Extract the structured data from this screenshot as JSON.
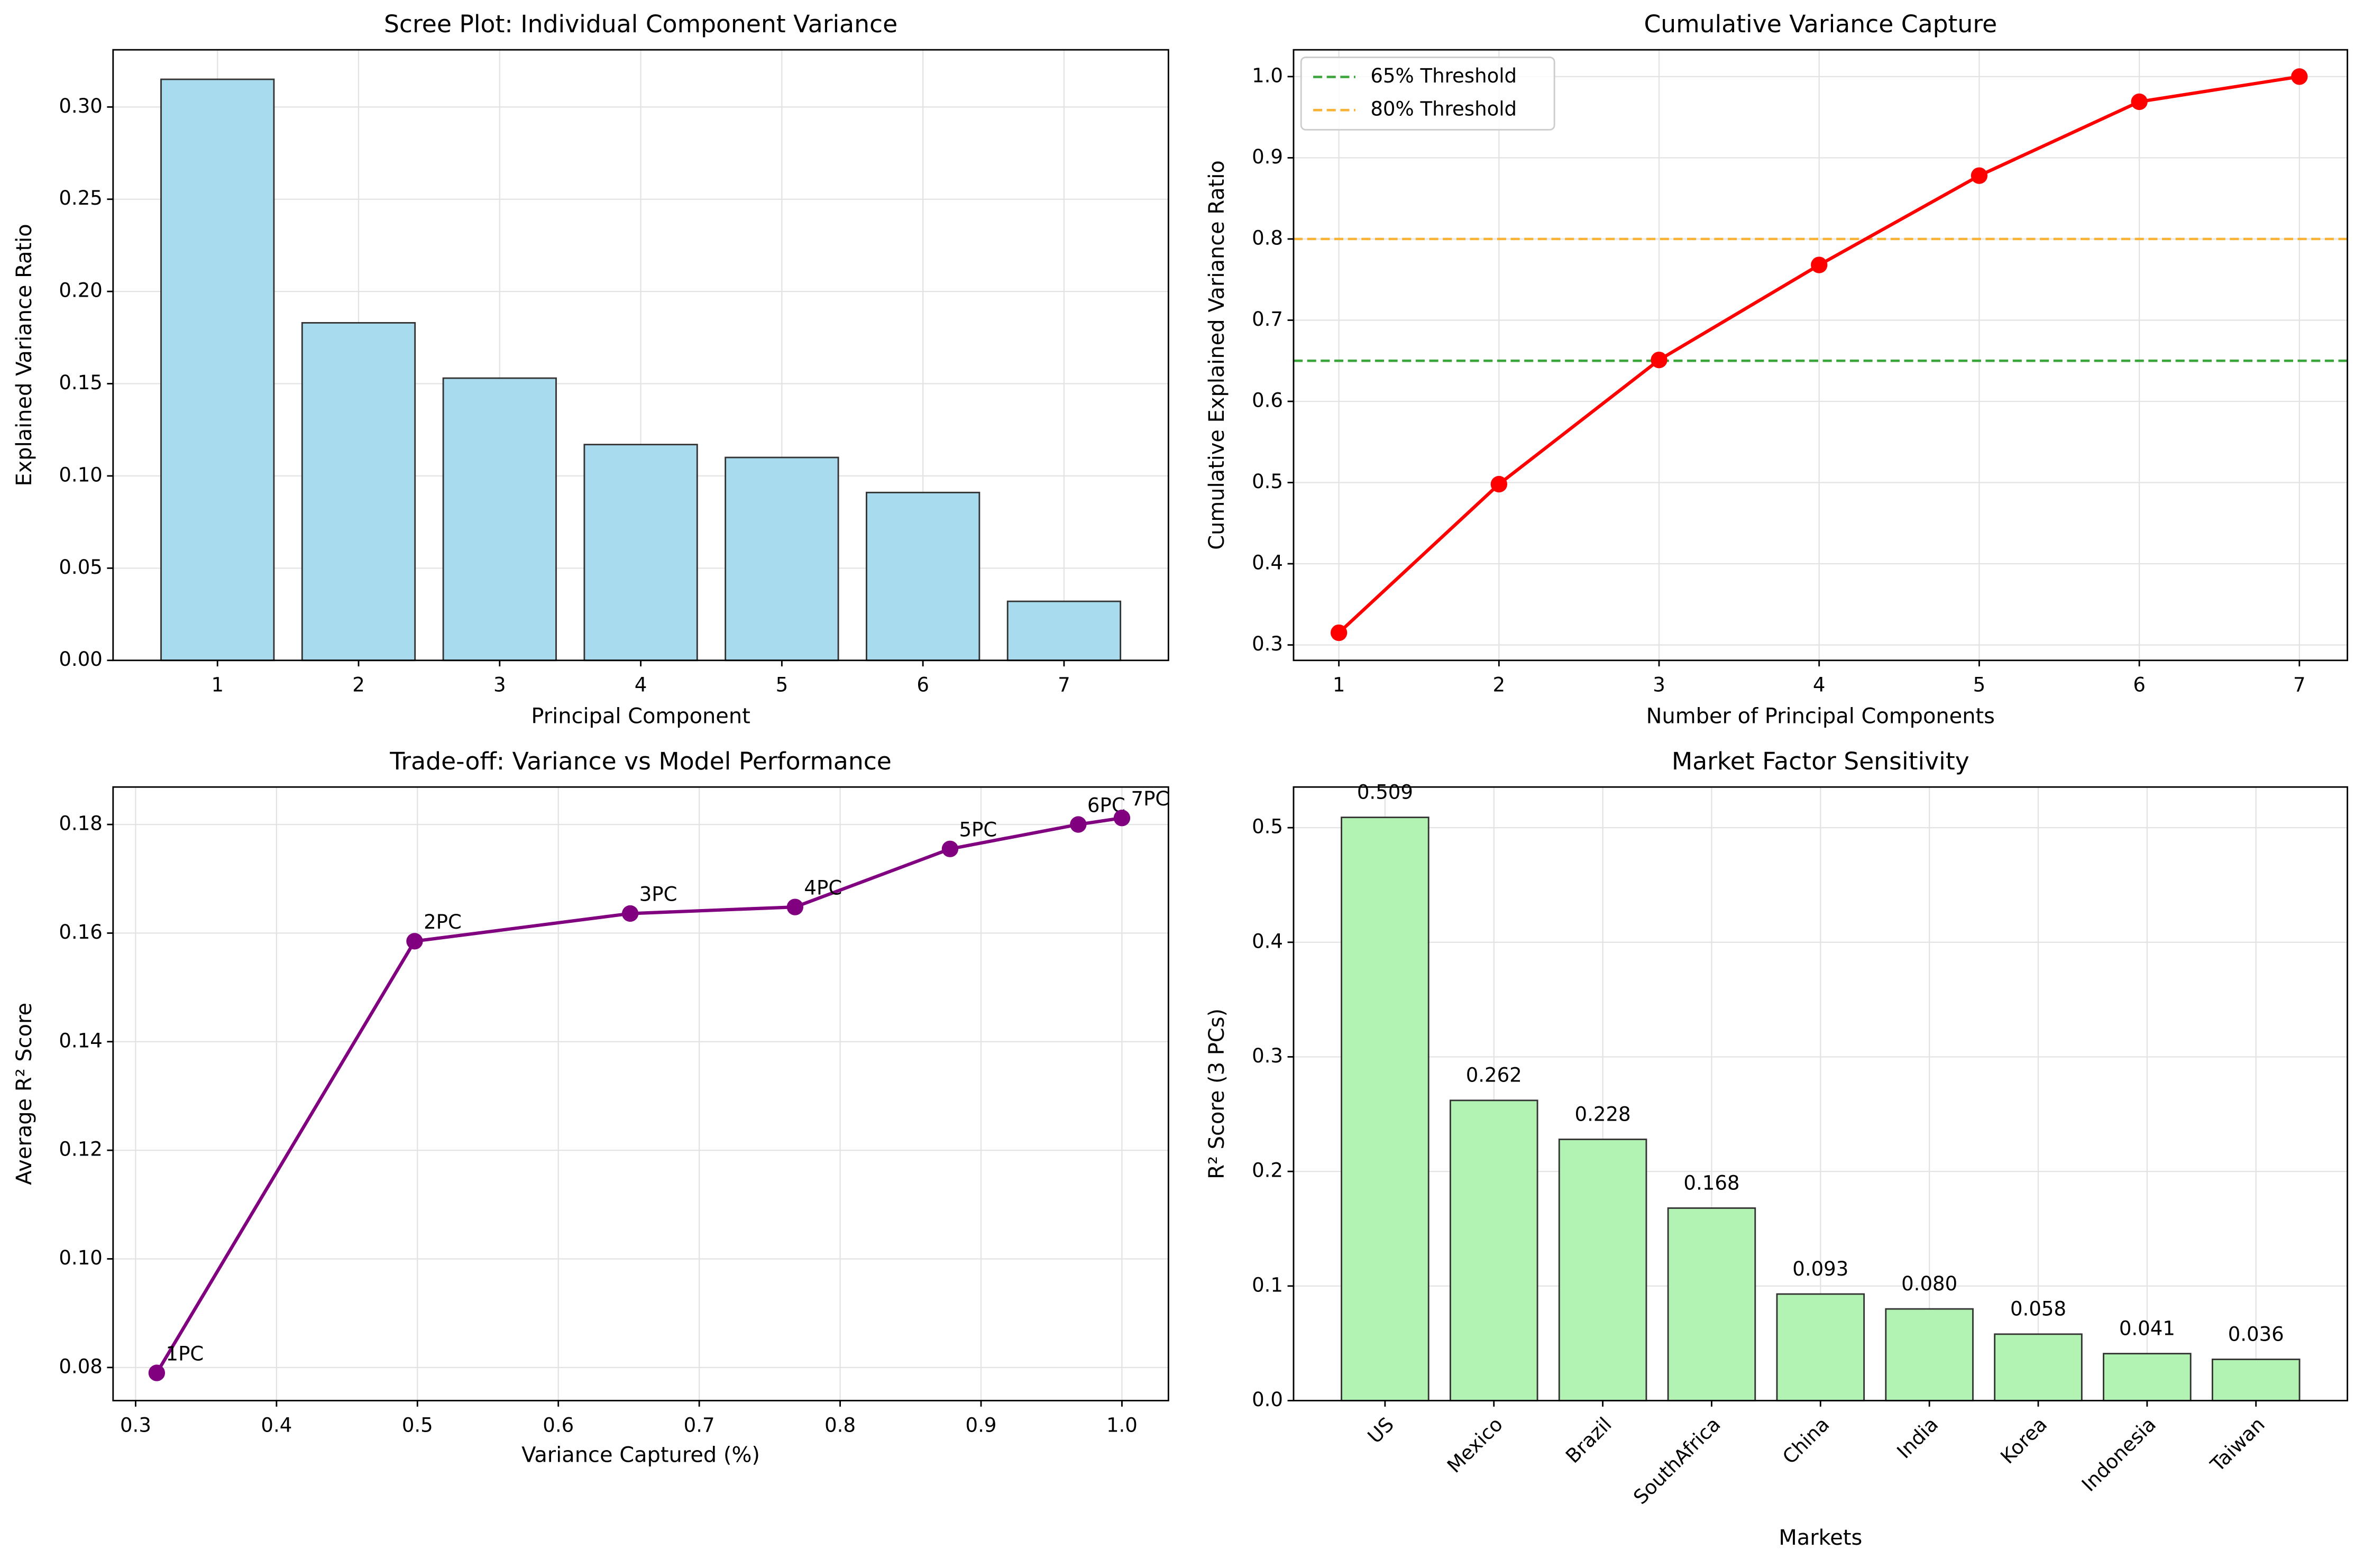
{
  "chart_data": [
    {
      "type": "bar",
      "title": "Scree Plot: Individual Component Variance",
      "x_label": "Principal Component",
      "y_label": "Explained Variance Ratio",
      "categories": [
        "1",
        "2",
        "3",
        "4",
        "5",
        "6",
        "7"
      ],
      "values": [
        0.315,
        0.183,
        0.153,
        0.117,
        0.11,
        0.091,
        0.032
      ],
      "color": "#a9dbee",
      "edgecolor": "#333333",
      "ylim": [
        0,
        0.331
      ],
      "yticks": [
        {
          "value": 0,
          "label": "0.00"
        },
        0.05,
        {
          "value": 0.1,
          "label": "0.10"
        },
        0.15,
        {
          "value": 0.2,
          "label": "0.20"
        },
        0.25,
        {
          "value": 0.3,
          "label": "0.30"
        }
      ],
      "grid": true
    },
    {
      "type": "line",
      "title": "Cumulative Variance Capture",
      "x_label": "Number of Principal Components",
      "y_label": "Cumulative Explained Variance Ratio",
      "x": [
        1,
        2,
        3,
        4,
        5,
        6,
        7
      ],
      "values": [
        0.315,
        0.498,
        0.651,
        0.768,
        0.878,
        0.969,
        1.0
      ],
      "color": "#ff0000",
      "hlines": [
        {
          "name": "65% Threshold",
          "value": 0.65,
          "color": "#3aa53a"
        },
        {
          "name": "80% Threshold",
          "value": 0.8,
          "color": "#f9b233"
        }
      ],
      "legend": "upper-left",
      "xlim": [
        0.717,
        7.3
      ],
      "xticks": [
        1,
        2,
        3,
        4,
        5,
        6,
        7
      ],
      "ylim": [
        0.281,
        1.033
      ],
      "yticks": [
        0.3,
        0.4,
        0.5,
        0.6,
        0.7,
        0.8,
        0.9,
        {
          "value": 1,
          "label": "1.0"
        }
      ],
      "grid": true
    },
    {
      "type": "line",
      "title": "Trade-off: Variance vs Model Performance",
      "x_label": "Variance Captured (%)",
      "y_label": "Average R² Score",
      "x": [
        0.315,
        0.498,
        0.651,
        0.768,
        0.878,
        0.969,
        1.0
      ],
      "values": [
        0.079,
        0.1585,
        0.1636,
        0.1648,
        0.1755,
        0.18,
        0.1812
      ],
      "point_labels": [
        "1PC",
        "2PC",
        "3PC",
        "4PC",
        "5PC",
        "6PC",
        "7PC"
      ],
      "color": "#800080",
      "xlim": [
        0.284,
        1.033
      ],
      "xticks": [
        0.3,
        0.4,
        0.5,
        0.6,
        0.7,
        0.8,
        0.9,
        {
          "value": 1,
          "label": "1.0"
        }
      ],
      "ylim": [
        0.0739,
        0.1869
      ],
      "yticks": [
        0.08,
        {
          "value": 0.1,
          "label": "0.10"
        },
        0.12,
        0.14,
        0.16,
        0.18
      ],
      "grid": true
    },
    {
      "type": "bar",
      "title": "Market Factor Sensitivity",
      "x_label": "Markets",
      "y_label": "R² Score (3 PCs)",
      "categories": [
        "US",
        "Mexico",
        "Brazil",
        "SouthAfrica",
        "China",
        "India",
        "Korea",
        "Indonesia",
        "Taiwan"
      ],
      "values": [
        0.509,
        0.262,
        0.228,
        0.168,
        0.093,
        0.08,
        0.058,
        0.041,
        0.036
      ],
      "value_labels": [
        "0.509",
        "0.262",
        "0.228",
        "0.168",
        "0.093",
        "0.080",
        "0.058",
        "0.041",
        "0.036"
      ],
      "color": "#b2f2b2",
      "edgecolor": "#333333",
      "x_tick_rotation": 45,
      "ylim": [
        0,
        0.5355
      ],
      "yticks": [
        {
          "value": 0,
          "label": "0.0"
        },
        0.1,
        0.2,
        0.3,
        0.4,
        0.5
      ],
      "grid": true
    }
  ]
}
